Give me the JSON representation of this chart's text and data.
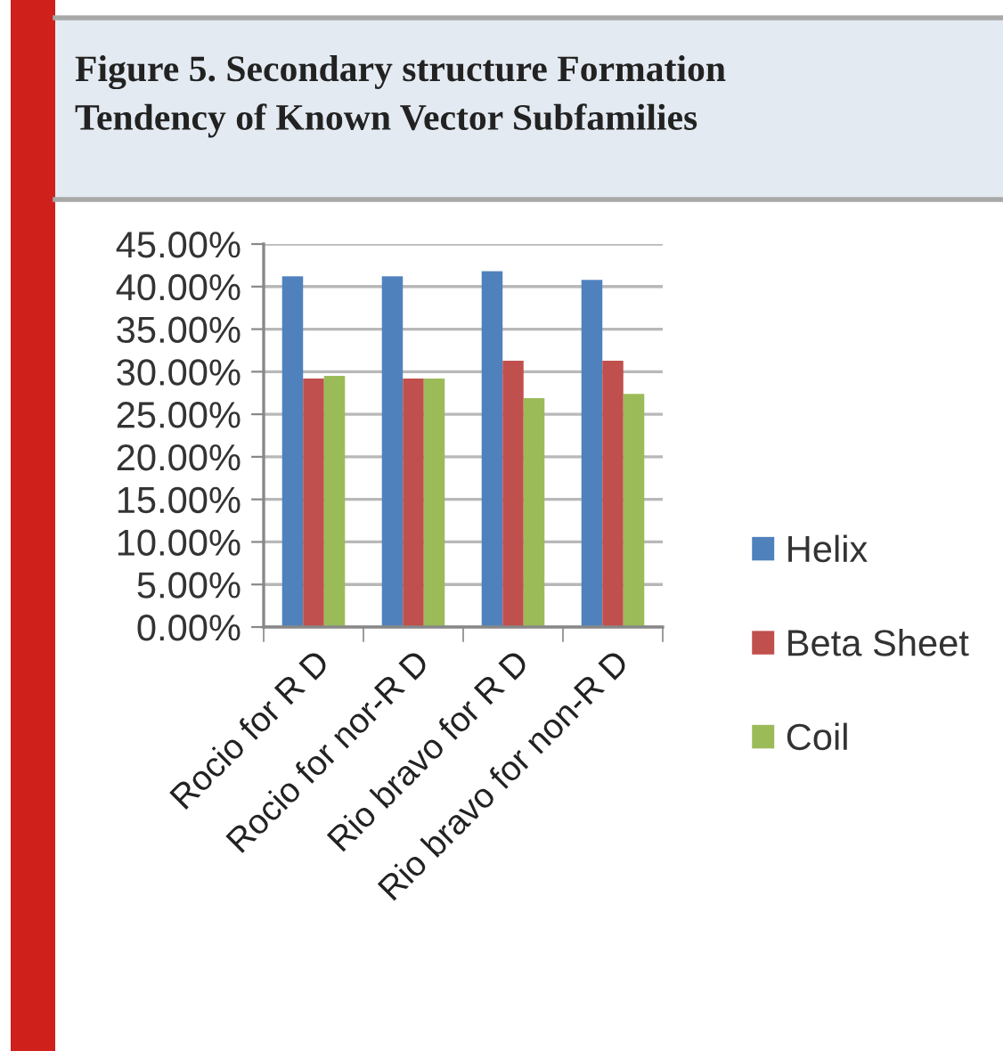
{
  "chart_data": {
    "type": "bar",
    "title": "Figure 5. Secondary structure Formation\nTendency of Known Vector Subfamilies",
    "categories": [
      "Rocio for R D",
      "Rocio for nor-R D",
      "Rio bravo for R D",
      "Rio bravo for non-R D"
    ],
    "series": [
      {
        "name": "Helix",
        "color": "#4f81bd",
        "values": [
          41.2,
          41.2,
          41.8,
          40.8
        ]
      },
      {
        "name": "Beta Sheet",
        "color": "#c0504d",
        "values": [
          29.2,
          29.2,
          31.3,
          31.3
        ]
      },
      {
        "name": "Coil",
        "color": "#9bbb59",
        "values": [
          29.5,
          29.2,
          26.9,
          27.4
        ]
      }
    ],
    "ylim": [
      0,
      45
    ],
    "yticks": [
      {
        "value": 0,
        "label": "0.00%"
      },
      {
        "value": 5,
        "label": "5.00%"
      },
      {
        "value": 10,
        "label": "10.00%"
      },
      {
        "value": 15,
        "label": "15.00%"
      },
      {
        "value": 20,
        "label": "20.00%"
      },
      {
        "value": 25,
        "label": "25.00%"
      },
      {
        "value": 30,
        "label": "30.00%"
      },
      {
        "value": 35,
        "label": "35.00%"
      },
      {
        "value": 40,
        "label": "40.00%"
      },
      {
        "value": 45,
        "label": "45.00%"
      }
    ],
    "grid": "y",
    "legend": "right"
  }
}
